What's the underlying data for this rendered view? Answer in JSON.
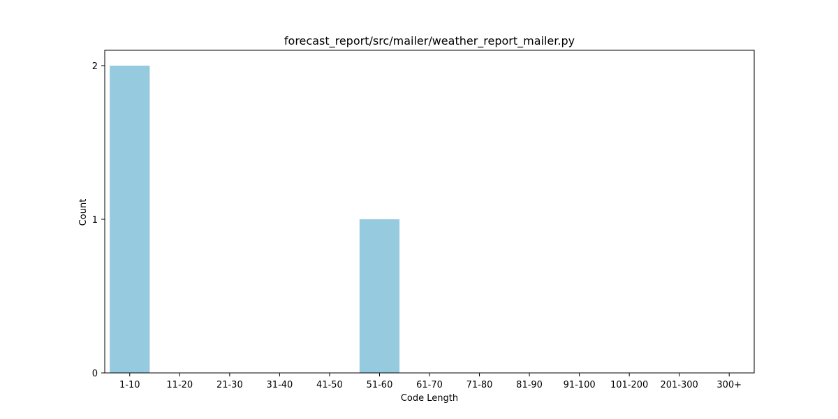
{
  "chart_data": {
    "type": "bar",
    "title": "forecast_report/src/mailer/weather_report_mailer.py",
    "xlabel": "Code Length",
    "ylabel": "Count",
    "categories": [
      "1-10",
      "11-20",
      "21-30",
      "31-40",
      "41-50",
      "51-60",
      "61-70",
      "71-80",
      "81-90",
      "91-100",
      "101-200",
      "201-300",
      "300+"
    ],
    "values": [
      2,
      0,
      0,
      0,
      0,
      1,
      0,
      0,
      0,
      0,
      0,
      0,
      0
    ],
    "ylim": [
      0,
      2.1
    ],
    "yticks": [
      "0",
      "1",
      "2"
    ],
    "grid": false,
    "bar_color": "#96cade"
  }
}
